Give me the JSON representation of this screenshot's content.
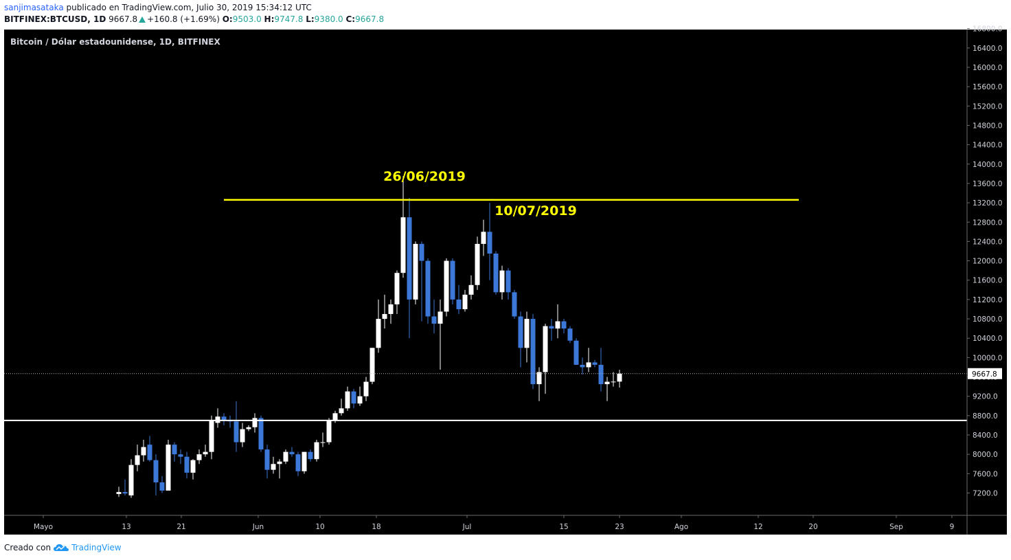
{
  "header": {
    "author": "sanjimasataka",
    "published_text": "publicado en TradingView.com, Julio 30, 2019 15:34:12 UTC",
    "symbol": "BITFINEX:BTCUSD, 1D",
    "last": "9667.8",
    "change": "+160.8 (+1.69%)",
    "o_label": "O:",
    "o_value": "9503.0",
    "h_label": "H:",
    "h_value": "9747.8",
    "l_label": "L:",
    "l_value": "9380.0",
    "c_label": "C:",
    "c_value": "9667.8"
  },
  "chart_data": {
    "type": "candlestick",
    "title": "Bitcoin / Dólar estadounidense, 1D, BITFINEX",
    "ylim": [
      7100,
      17200
    ],
    "y_ticks": [
      7200,
      7600,
      8000,
      8400,
      8800,
      9200,
      9600,
      10000,
      10400,
      10800,
      11200,
      11600,
      12000,
      12400,
      12800,
      13200,
      13600,
      14000,
      14400,
      14800,
      15200,
      15600,
      16000,
      16400,
      16800
    ],
    "x_ticks": [
      "Mayo",
      "13",
      "21",
      "Jun",
      "10",
      "18",
      "Jul",
      "15",
      "23",
      "Ago",
      "12",
      "20",
      "Sep",
      "9"
    ],
    "last_price_label": "9667.8",
    "last_price": 9667.8,
    "up_color": "#ffffff",
    "down_color": "#3b78d8",
    "annotations": [
      {
        "text": "26/06/2019",
        "color": "#ffff00"
      },
      {
        "text": "10/07/2019",
        "color": "#ffff00"
      }
    ],
    "resistance_line": {
      "price": 13260,
      "color": "#ffff00",
      "from_day": 27,
      "to_day": 120
    },
    "support_line": {
      "price": 8700,
      "color": "#ffffff"
    },
    "candles": [
      {
        "d": 10,
        "o": 7180,
        "h": 7330,
        "l": 7120,
        "c": 7220
      },
      {
        "d": 11,
        "o": 7220,
        "h": 7480,
        "l": 7150,
        "c": 7190
      },
      {
        "d": 12,
        "o": 7150,
        "h": 7900,
        "l": 7100,
        "c": 7780
      },
      {
        "d": 13,
        "o": 7780,
        "h": 8200,
        "l": 7650,
        "c": 7980
      },
      {
        "d": 14,
        "o": 7980,
        "h": 8300,
        "l": 7850,
        "c": 8150
      },
      {
        "d": 15,
        "o": 8200,
        "h": 8380,
        "l": 7850,
        "c": 7880
      },
      {
        "d": 16,
        "o": 7880,
        "h": 8000,
        "l": 7150,
        "c": 7420
      },
      {
        "d": 17,
        "o": 7420,
        "h": 7550,
        "l": 7200,
        "c": 7250
      },
      {
        "d": 18,
        "o": 7250,
        "h": 8300,
        "l": 7250,
        "c": 8200
      },
      {
        "d": 19,
        "o": 8200,
        "h": 8250,
        "l": 7850,
        "c": 8000
      },
      {
        "d": 20,
        "o": 8000,
        "h": 8100,
        "l": 7800,
        "c": 7950
      },
      {
        "d": 21,
        "o": 7950,
        "h": 8050,
        "l": 7500,
        "c": 7620
      },
      {
        "d": 22,
        "o": 7620,
        "h": 7900,
        "l": 7480,
        "c": 7880
      },
      {
        "d": 23,
        "o": 7880,
        "h": 8100,
        "l": 7800,
        "c": 8000
      },
      {
        "d": 24,
        "o": 8000,
        "h": 8200,
        "l": 7950,
        "c": 8050
      },
      {
        "d": 25,
        "o": 8050,
        "h": 8800,
        "l": 7900,
        "c": 8700
      },
      {
        "d": 26,
        "o": 8650,
        "h": 8950,
        "l": 8550,
        "c": 8780
      },
      {
        "d": 27,
        "o": 8780,
        "h": 8850,
        "l": 8600,
        "c": 8700
      },
      {
        "d": 28,
        "o": 8700,
        "h": 8800,
        "l": 8550,
        "c": 8680
      },
      {
        "d": 29,
        "o": 8680,
        "h": 9100,
        "l": 8050,
        "c": 8250
      },
      {
        "d": 30,
        "o": 8250,
        "h": 8650,
        "l": 8150,
        "c": 8520
      },
      {
        "d": 31,
        "o": 8520,
        "h": 8600,
        "l": 8480,
        "c": 8560
      },
      {
        "d": 32,
        "o": 8560,
        "h": 8850,
        "l": 8450,
        "c": 8750
      },
      {
        "d": 33,
        "o": 8750,
        "h": 8800,
        "l": 8050,
        "c": 8100
      },
      {
        "d": 34,
        "o": 8100,
        "h": 8200,
        "l": 7500,
        "c": 7680
      },
      {
        "d": 35,
        "o": 7680,
        "h": 7950,
        "l": 7600,
        "c": 7800
      },
      {
        "d": 36,
        "o": 7800,
        "h": 7900,
        "l": 7500,
        "c": 7850
      },
      {
        "d": 37,
        "o": 7850,
        "h": 8100,
        "l": 7800,
        "c": 8050
      },
      {
        "d": 38,
        "o": 8050,
        "h": 8150,
        "l": 7950,
        "c": 8000
      },
      {
        "d": 39,
        "o": 8000,
        "h": 8050,
        "l": 7550,
        "c": 7650
      },
      {
        "d": 40,
        "o": 7650,
        "h": 8050,
        "l": 7600,
        "c": 8050
      },
      {
        "d": 41,
        "o": 8050,
        "h": 8100,
        "l": 7850,
        "c": 7900
      },
      {
        "d": 42,
        "o": 7900,
        "h": 8300,
        "l": 7850,
        "c": 8250
      },
      {
        "d": 43,
        "o": 8250,
        "h": 8450,
        "l": 8150,
        "c": 8250
      },
      {
        "d": 44,
        "o": 8250,
        "h": 8750,
        "l": 8200,
        "c": 8700
      },
      {
        "d": 45,
        "o": 8700,
        "h": 8900,
        "l": 8650,
        "c": 8850
      },
      {
        "d": 46,
        "o": 8850,
        "h": 9150,
        "l": 8800,
        "c": 8950
      },
      {
        "d": 47,
        "o": 8950,
        "h": 9400,
        "l": 8900,
        "c": 9300
      },
      {
        "d": 48,
        "o": 9300,
        "h": 9350,
        "l": 8950,
        "c": 9050
      },
      {
        "d": 49,
        "o": 9050,
        "h": 9400,
        "l": 9000,
        "c": 9200
      },
      {
        "d": 50,
        "o": 9200,
        "h": 9600,
        "l": 9100,
        "c": 9500
      },
      {
        "d": 51,
        "o": 9500,
        "h": 10200,
        "l": 9450,
        "c": 10200
      },
      {
        "d": 52,
        "o": 10200,
        "h": 11200,
        "l": 10100,
        "c": 10800
      },
      {
        "d": 53,
        "o": 10800,
        "h": 11300,
        "l": 10600,
        "c": 10900
      },
      {
        "d": 54,
        "o": 10900,
        "h": 11200,
        "l": 10700,
        "c": 11100
      },
      {
        "d": 55,
        "o": 11100,
        "h": 11800,
        "l": 10900,
        "c": 11750
      },
      {
        "d": 56,
        "o": 11750,
        "h": 13750,
        "l": 11650,
        "c": 12900
      },
      {
        "d": 57,
        "o": 12900,
        "h": 13300,
        "l": 10400,
        "c": 11200
      },
      {
        "d": 58,
        "o": 11200,
        "h": 12400,
        "l": 11100,
        "c": 12350
      },
      {
        "d": 59,
        "o": 12350,
        "h": 12400,
        "l": 10750,
        "c": 12000
      },
      {
        "d": 60,
        "o": 12000,
        "h": 12050,
        "l": 10700,
        "c": 10850
      },
      {
        "d": 61,
        "o": 10850,
        "h": 11200,
        "l": 10500,
        "c": 10700
      },
      {
        "d": 62,
        "o": 10700,
        "h": 11200,
        "l": 9750,
        "c": 10950
      },
      {
        "d": 63,
        "o": 10950,
        "h": 12050,
        "l": 10850,
        "c": 12000
      },
      {
        "d": 64,
        "o": 12000,
        "h": 12050,
        "l": 11100,
        "c": 11200
      },
      {
        "d": 65,
        "o": 11200,
        "h": 11500,
        "l": 10900,
        "c": 11000
      },
      {
        "d": 66,
        "o": 11000,
        "h": 11400,
        "l": 10950,
        "c": 11300
      },
      {
        "d": 67,
        "o": 11300,
        "h": 11700,
        "l": 11200,
        "c": 11500
      },
      {
        "d": 68,
        "o": 11500,
        "h": 12500,
        "l": 11400,
        "c": 12350
      },
      {
        "d": 69,
        "o": 12350,
        "h": 12850,
        "l": 12100,
        "c": 12600
      },
      {
        "d": 70,
        "o": 12600,
        "h": 13200,
        "l": 11600,
        "c": 12150
      },
      {
        "d": 71,
        "o": 12150,
        "h": 12200,
        "l": 11300,
        "c": 11350
      },
      {
        "d": 72,
        "o": 11350,
        "h": 11900,
        "l": 11200,
        "c": 11800
      },
      {
        "d": 73,
        "o": 11800,
        "h": 11850,
        "l": 11200,
        "c": 11350
      },
      {
        "d": 74,
        "o": 11350,
        "h": 11400,
        "l": 10800,
        "c": 10850
      },
      {
        "d": 75,
        "o": 10850,
        "h": 10950,
        "l": 9800,
        "c": 10200
      },
      {
        "d": 76,
        "o": 10200,
        "h": 10950,
        "l": 9900,
        "c": 10800
      },
      {
        "d": 77,
        "o": 10800,
        "h": 10900,
        "l": 9350,
        "c": 9450
      },
      {
        "d": 78,
        "o": 9450,
        "h": 9800,
        "l": 9100,
        "c": 9700
      },
      {
        "d": 79,
        "o": 9700,
        "h": 10700,
        "l": 9250,
        "c": 10650
      },
      {
        "d": 80,
        "o": 10650,
        "h": 10800,
        "l": 10350,
        "c": 10600
      },
      {
        "d": 81,
        "o": 10600,
        "h": 11100,
        "l": 10400,
        "c": 10750
      },
      {
        "d": 82,
        "o": 10750,
        "h": 10800,
        "l": 10500,
        "c": 10600
      },
      {
        "d": 83,
        "o": 10600,
        "h": 10650,
        "l": 10300,
        "c": 10350
      },
      {
        "d": 84,
        "o": 10350,
        "h": 10400,
        "l": 9850,
        "c": 9850
      },
      {
        "d": 85,
        "o": 9850,
        "h": 10000,
        "l": 9650,
        "c": 9800
      },
      {
        "d": 86,
        "o": 9800,
        "h": 10200,
        "l": 9700,
        "c": 9900
      },
      {
        "d": 87,
        "o": 9900,
        "h": 9950,
        "l": 9800,
        "c": 9850
      },
      {
        "d": 88,
        "o": 9850,
        "h": 10200,
        "l": 9300,
        "c": 9450
      },
      {
        "d": 89,
        "o": 9450,
        "h": 9600,
        "l": 9100,
        "c": 9500
      },
      {
        "d": 90,
        "o": 9500,
        "h": 9700,
        "l": 9400,
        "c": 9503
      },
      {
        "d": 91,
        "o": 9503,
        "h": 9747.8,
        "l": 9380,
        "c": 9667.8
      }
    ]
  },
  "footer": {
    "created_with": "Creado con",
    "brand": "TradingView"
  }
}
